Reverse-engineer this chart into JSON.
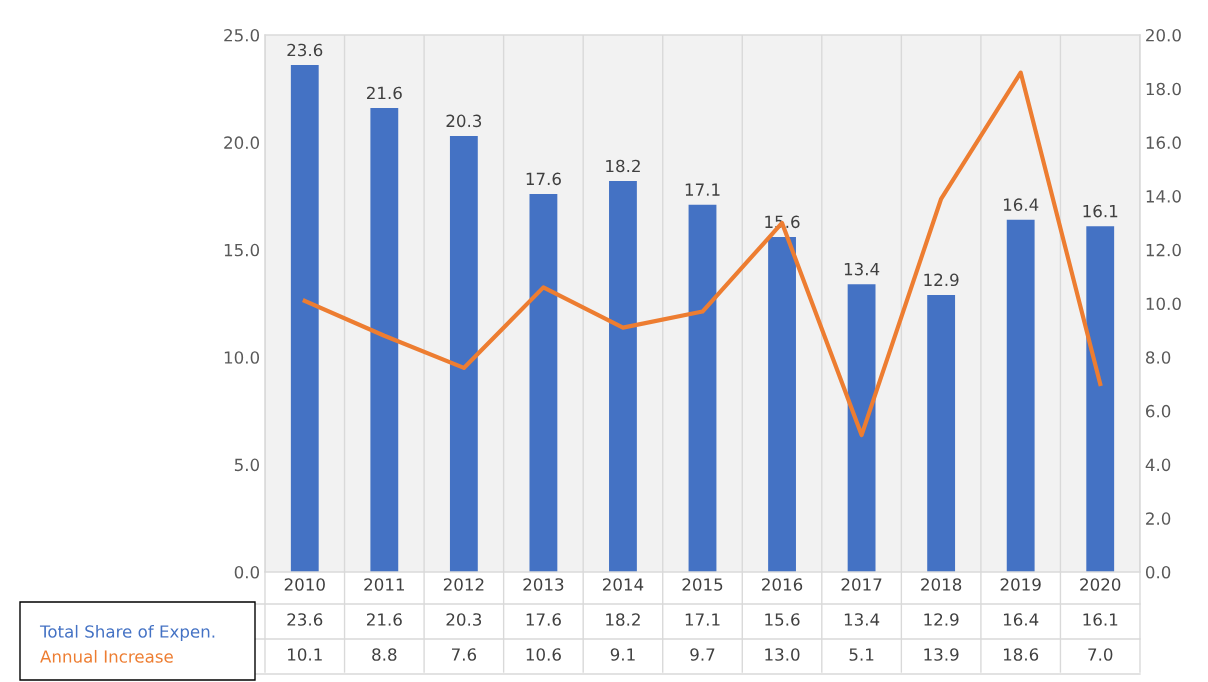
{
  "chart_data": {
    "type": "bar",
    "categories": [
      "2010",
      "2011",
      "2012",
      "2013",
      "2014",
      "2015",
      "2016",
      "2017",
      "2018",
      "2019",
      "2020"
    ],
    "series": [
      {
        "name": "Total Share of Expen.",
        "color": "#4472c4",
        "values": [
          23.6,
          21.6,
          20.3,
          17.6,
          18.2,
          17.1,
          15.6,
          13.4,
          12.9,
          16.4,
          16.1
        ],
        "value_labels": [
          "23.6",
          "21.6",
          "20.3",
          "17.6",
          "18.2",
          "17.1",
          "15.6",
          "13.4",
          "12.9",
          "16.4",
          "16.1"
        ]
      },
      {
        "name": "Annual Increase",
        "type": "line",
        "axis": "y2",
        "color": "#ed7d31",
        "values": [
          10.1,
          8.8,
          7.6,
          10.6,
          9.1,
          9.7,
          13.0,
          5.1,
          13.9,
          18.6,
          7.0
        ],
        "value_labels": [
          "10.1",
          "8.8",
          "7.6",
          "10.6",
          "9.1",
          "9.7",
          "13.0",
          "5.1",
          "13.9",
          "18.6",
          "7.0"
        ]
      }
    ],
    "ylim": [
      0,
      25
    ],
    "yticks": [
      {
        "value": 0,
        "label": "0.0"
      },
      {
        "value": 5,
        "label": "5.0"
      },
      {
        "value": 10,
        "label": "10.0"
      },
      {
        "value": 15,
        "label": "15.0"
      },
      {
        "value": 20,
        "label": "20.0"
      },
      {
        "value": 25,
        "label": "25.0"
      }
    ],
    "y2lim": [
      0,
      20
    ],
    "y2ticks": [
      {
        "value": 0,
        "label": "0.0"
      },
      {
        "value": 2,
        "label": "2.0"
      },
      {
        "value": 4,
        "label": "4.0"
      },
      {
        "value": 6,
        "label": "6.0"
      },
      {
        "value": 8,
        "label": "8.0"
      },
      {
        "value": 10,
        "label": "10.0"
      },
      {
        "value": 12,
        "label": "12.0"
      },
      {
        "value": 14,
        "label": "14.0"
      },
      {
        "value": 16,
        "label": "16.0"
      },
      {
        "value": 18,
        "label": "18.0"
      },
      {
        "value": 20,
        "label": "20.0"
      }
    ],
    "grid": "x",
    "legend": "bottom left",
    "marker": "none",
    "line_style": "solid"
  }
}
